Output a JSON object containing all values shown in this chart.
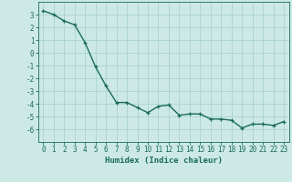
{
  "x": [
    0,
    1,
    2,
    3,
    4,
    5,
    6,
    7,
    8,
    9,
    10,
    11,
    12,
    13,
    14,
    15,
    16,
    17,
    18,
    19,
    20,
    21,
    22,
    23
  ],
  "y": [
    3.3,
    3.0,
    2.5,
    2.2,
    0.8,
    -1.1,
    -2.6,
    -3.9,
    -3.9,
    -4.3,
    -4.7,
    -4.2,
    -4.1,
    -4.9,
    -4.8,
    -4.8,
    -5.2,
    -5.2,
    -5.3,
    -5.9,
    -5.6,
    -5.6,
    -5.7,
    -5.4
  ],
  "line_color": "#1a6b5a",
  "marker": "+",
  "marker_size": 3,
  "line_width": 1.0,
  "bg_color": "#cce9e5",
  "grid_color": "#aad4ce",
  "xlabel": "Humidex (Indice chaleur)",
  "xlim": [
    -0.5,
    23.5
  ],
  "ylim": [
    -7,
    4
  ],
  "xticks": [
    0,
    1,
    2,
    3,
    4,
    5,
    6,
    7,
    8,
    9,
    10,
    11,
    12,
    13,
    14,
    15,
    16,
    17,
    18,
    19,
    20,
    21,
    22,
    23
  ],
  "yticks": [
    -6,
    -5,
    -4,
    -3,
    -2,
    -1,
    0,
    1,
    2,
    3
  ],
  "tick_color": "#1a6b5a",
  "label_fontsize": 6.5,
  "tick_fontsize": 5.5
}
